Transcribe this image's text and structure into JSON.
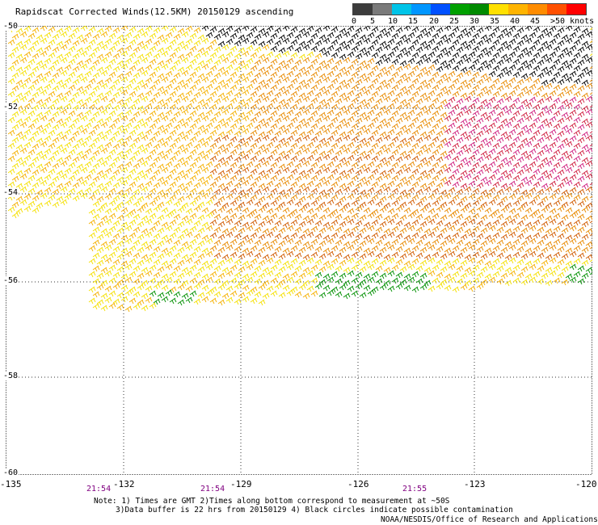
{
  "title": "Rapidscat Corrected Winds(12.5KM) 20150129 ascending",
  "legend": {
    "colors": [
      "#3c3c3c",
      "#7a7a7a",
      "#00c4e8",
      "#0096ff",
      "#0050ff",
      "#00a000",
      "#008a00",
      "#ffe000",
      "#ffb400",
      "#ff8c00",
      "#ff5000",
      "#ff0000",
      "#c80050",
      "#8c5030",
      "#c8a080",
      "#ff00ff",
      "#b400ff",
      "#6400c8"
    ],
    "ticks": [
      "0",
      "5",
      "10",
      "15",
      "20",
      "25",
      "30",
      "35",
      "40",
      "45",
      ">50 knots"
    ]
  },
  "lat_labels": [
    "-50",
    "-52",
    "-54",
    "-56",
    "-58",
    "-60"
  ],
  "lon_labels": [
    "-135",
    "-132",
    "-129",
    "-126",
    "-123",
    "-120"
  ],
  "times": [
    "21:54",
    "21:54",
    "21:55"
  ],
  "notes": {
    "line1": "Note: 1) Times are GMT 2)Times along bottom correspond to measurement at ~50S",
    "line2": "3)Data buffer is 22 hrs from 20150129 4) Black circles indicate possible contamination"
  },
  "credit": "NOAA/NESDIS/Office of Research and Applications",
  "wind_colors": {
    "yellow": "#f5e000",
    "light_orange": "#f5b000",
    "orange": "#e88a00",
    "dark_orange": "#d05a00",
    "red": "#d02040",
    "magenta": "#d02080",
    "green": "#009000",
    "black": "#000000"
  }
}
